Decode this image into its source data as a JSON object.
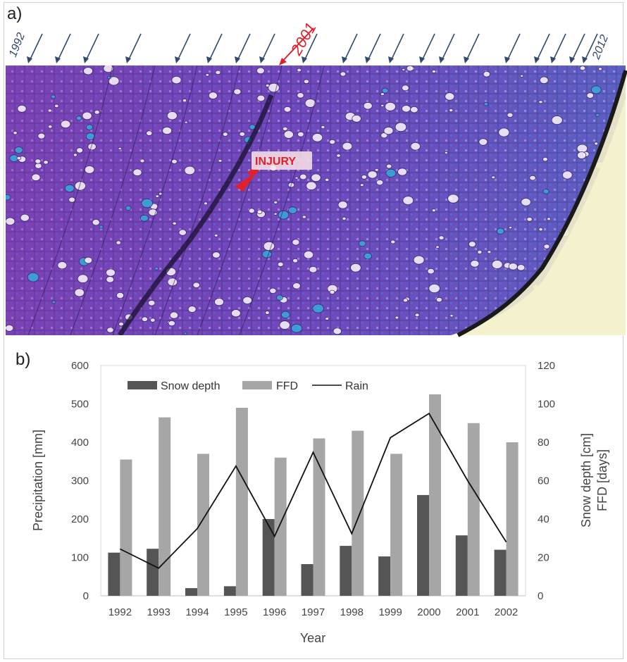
{
  "figure": {
    "panel_a_label": "a)",
    "panel_b_label": "b)",
    "photo": {
      "start_year": "1992",
      "end_year": "2012",
      "highlight_year": "2001",
      "injury_label": "INJURY",
      "arrow_count": 20,
      "arrow_color": "#334b6b",
      "highlight_color": "#e0202a",
      "tissue_colors": [
        "#7a3fb0",
        "#9a4ec8",
        "#5a4cc0",
        "#b05ab8",
        "#3a7fd0"
      ]
    }
  },
  "chart_data": {
    "type": "bar",
    "title": "",
    "xlabel": "Year",
    "ylabel_left": "Precipitation [mm]",
    "ylabel_right_line1": "Snow depth [cm]",
    "ylabel_right_line2": "FFD [days]",
    "ylim_left": [
      0,
      600
    ],
    "ylim_right": [
      0,
      120
    ],
    "yticks_left": [
      "0",
      "100",
      "200",
      "300",
      "400",
      "500",
      "600"
    ],
    "yticks_right": [
      "0",
      "20",
      "40",
      "60",
      "80",
      "100",
      "120"
    ],
    "grid": false,
    "legend_position": "top-left",
    "categories": [
      "1992",
      "1993",
      "1994",
      "1995",
      "1996",
      "1997",
      "1998",
      "1999",
      "2000",
      "2001",
      "2002"
    ],
    "series": [
      {
        "name": "Snow depth",
        "type": "bar",
        "axis": "right",
        "color": "#555555",
        "values": [
          22.5,
          24.5,
          4,
          5,
          40,
          16.5,
          26,
          20.5,
          52.5,
          31.5,
          24
        ]
      },
      {
        "name": "FFD",
        "type": "bar",
        "axis": "right",
        "color": "#a6a6a6",
        "values": [
          71,
          93,
          74,
          98,
          72,
          82,
          86,
          74,
          105,
          90,
          80
        ]
      },
      {
        "name": "Rain",
        "type": "line",
        "axis": "left",
        "color": "#111111",
        "values": [
          122,
          72,
          175,
          338,
          155,
          374,
          162,
          412,
          475,
          300,
          140
        ]
      }
    ]
  }
}
